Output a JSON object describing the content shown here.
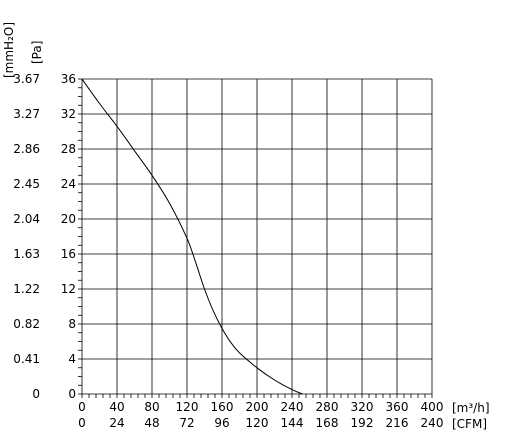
{
  "chart_data": {
    "type": "line",
    "x_axis_primary": {
      "unit": "[m³/h]",
      "ticks": [
        "0",
        "40",
        "80",
        "120",
        "160",
        "200",
        "240",
        "280",
        "320",
        "360",
        "400"
      ],
      "range": [
        0,
        400
      ]
    },
    "x_axis_secondary": {
      "unit": "[CFM]",
      "ticks": [
        "0",
        "24",
        "48",
        "72",
        "96",
        "120",
        "144",
        "168",
        "192",
        "216",
        "240"
      ]
    },
    "y_axis_primary": {
      "unit": "[Pa]",
      "ticks": [
        "0",
        "4",
        "8",
        "12",
        "16",
        "20",
        "24",
        "28",
        "32",
        "36"
      ],
      "range": [
        0,
        36
      ]
    },
    "y_axis_secondary": {
      "unit": "[mmH₂O]",
      "ticks": [
        "0",
        "0.41",
        "0.82",
        "1.22",
        "1.63",
        "2.04",
        "2.45",
        "2.86",
        "3.27",
        "3.67"
      ]
    },
    "grid": true,
    "series": [
      {
        "x": [
          0,
          20,
          40,
          60,
          80,
          100,
          120,
          130,
          140,
          150,
          160,
          170,
          180,
          200,
          220,
          240,
          252
        ],
        "y": [
          36,
          33.2,
          30.6,
          27.8,
          25,
          21.8,
          17.8,
          15,
          12,
          9.5,
          7.5,
          5.9,
          4.7,
          3,
          1.6,
          0.5,
          0
        ]
      }
    ]
  }
}
